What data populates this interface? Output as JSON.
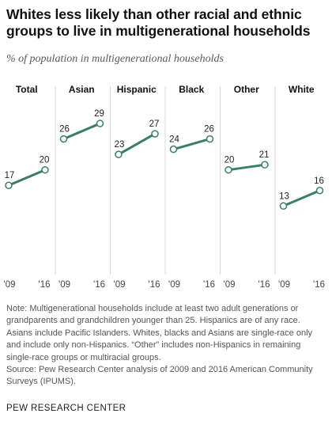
{
  "title": "Whites less likely than other racial and ethnic groups to live in multigenerational households",
  "subtitle": "% of population in multigenerational households",
  "note": "Note: Multigenerational households include at least two adult generations or grandparents and grandchildren younger than 25. Hispanics are of any race. Asians include Pacific Islanders. Whites, blacks and Asians are single-race only and include only non-Hispanics. “Other” includes non-Hispanics in remaining single-race groups or multiracial groups.",
  "source": "Source: Pew Research Center analysis of 2009 and 2016 American Community Surveys (IPUMS).",
  "org": "PEW RESEARCH CENTER",
  "colors": {
    "line": "#3a7d6b",
    "grid": "#d9d9d9",
    "text": "#222222"
  },
  "chart_data": {
    "type": "line",
    "x": [
      "'09",
      "'16"
    ],
    "ylim": [
      0,
      33
    ],
    "grid": false,
    "panels": [
      {
        "name": "Total",
        "values": [
          17,
          20
        ]
      },
      {
        "name": "Asian",
        "values": [
          26,
          29
        ]
      },
      {
        "name": "Hispanic",
        "values": [
          23,
          27
        ]
      },
      {
        "name": "Black",
        "values": [
          24,
          26
        ]
      },
      {
        "name": "Other",
        "values": [
          20,
          21
        ]
      },
      {
        "name": "White",
        "values": [
          13,
          16
        ]
      }
    ]
  }
}
